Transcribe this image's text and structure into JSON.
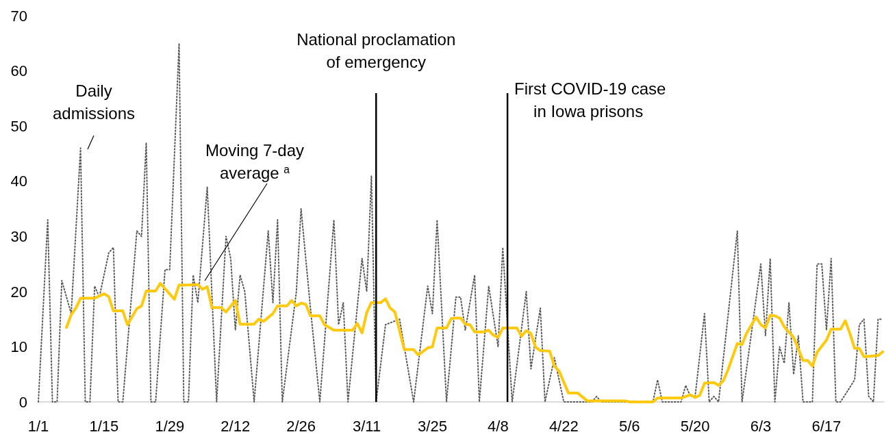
{
  "chart_data": {
    "type": "line",
    "xlim": [
      "--01-01",
      "--06-30"
    ],
    "xticks": [
      {
        "value": "--01-01",
        "label": "1/1"
      },
      {
        "value": "--01-15",
        "label": "1/15"
      },
      {
        "value": "--01-29",
        "label": "1/29"
      },
      {
        "value": "--02-12",
        "label": "2/12"
      },
      {
        "value": "--02-26",
        "label": "2/26"
      },
      {
        "value": "--03-11",
        "label": "3/11"
      },
      {
        "value": "--03-25",
        "label": "3/25"
      },
      {
        "value": "--04-08",
        "label": "4/8"
      },
      {
        "value": "--04-22",
        "label": "4/22"
      },
      {
        "value": "--05-06",
        "label": "5/6"
      },
      {
        "value": "--05-20",
        "label": "5/20"
      },
      {
        "value": "--06-03",
        "label": "6/3"
      },
      {
        "value": "--06-17",
        "label": "6/17"
      }
    ],
    "ylim": [
      0,
      70
    ],
    "yticks": [
      0,
      10,
      20,
      30,
      40,
      50,
      60,
      70
    ],
    "grid": false,
    "legend": false,
    "marker": "none",
    "ref_lines": [
      {
        "axis": "x",
        "value": "--03-13",
        "label": "National proclamation of emergency",
        "color": "#000000"
      },
      {
        "axis": "x",
        "value": "--04-10",
        "label": "First COVID-19 case in Iowa prisons",
        "color": "#000000"
      }
    ],
    "series": [
      {
        "name": "Daily admissions",
        "color": "#595959",
        "line_style": "dotted",
        "x": [
          "--01-01",
          "--01-03",
          "--01-04",
          "--01-05",
          "--01-06",
          "--01-08",
          "--01-10",
          "--01-11",
          "--01-12",
          "--01-13",
          "--01-14",
          "--01-16",
          "--01-17",
          "--01-18",
          "--01-19",
          "--01-22",
          "--01-23",
          "--01-24",
          "--01-25",
          "--01-26",
          "--01-28",
          "--01-29",
          "--01-31",
          "--02-01",
          "--02-02",
          "--02-03",
          "--02-04",
          "--02-06",
          "--02-08",
          "--02-10",
          "--02-11",
          "--02-12",
          "--02-13",
          "--02-14",
          "--02-16",
          "--02-19",
          "--02-20",
          "--02-21",
          "--02-22",
          "--02-25",
          "--02-26",
          "--02-28",
          "--03-01",
          "--03-04",
          "--03-05",
          "--03-06",
          "--03-07",
          "--03-10",
          "--03-11",
          "--03-12",
          "--03-13",
          "--03-15",
          "--03-18",
          "--03-21",
          "--03-24",
          "--03-25",
          "--03-26",
          "--03-28",
          "--03-30",
          "--03-31",
          "--04-01",
          "--04-03",
          "--04-04",
          "--04-06",
          "--04-08",
          "--04-09",
          "--04-11",
          "--04-14",
          "--04-15",
          "--04-17",
          "--04-18",
          "--04-20",
          "--04-22",
          "--04-28",
          "--04-29",
          "--04-30",
          "--05-11",
          "--05-12",
          "--05-13",
          "--05-17",
          "--05-18",
          "--05-19",
          "--05-20",
          "--05-22",
          "--05-23",
          "--05-24",
          "--05-25",
          "--05-29",
          "--05-30",
          "--06-03",
          "--06-04",
          "--06-05",
          "--06-06",
          "--06-07",
          "--06-08",
          "--06-09",
          "--06-10",
          "--06-11",
          "--06-12",
          "--06-14",
          "--06-15",
          "--06-16",
          "--06-17",
          "--06-18",
          "--06-19",
          "--06-20",
          "--06-23",
          "--06-24",
          "--06-25",
          "--06-26",
          "--06-27",
          "--06-28",
          "--06-29"
        ],
        "values": [
          0,
          33,
          0,
          0,
          22,
          16,
          46,
          0,
          0,
          21,
          19,
          27,
          28,
          0,
          0,
          31,
          30,
          47,
          0,
          0,
          24,
          24,
          65,
          0,
          0,
          23,
          18,
          39,
          0,
          30,
          26,
          13,
          23,
          20,
          0,
          31,
          18,
          33,
          0,
          20,
          35,
          17,
          0,
          33,
          14,
          18,
          0,
          26,
          20,
          41,
          0,
          14,
          15,
          0,
          21,
          16,
          33,
          0,
          19,
          19,
          13,
          23,
          0,
          21,
          10,
          28,
          0,
          20,
          6,
          17,
          0,
          8,
          0,
          0,
          1,
          0,
          0,
          4,
          0,
          0,
          3,
          1,
          1,
          16,
          0,
          1,
          0,
          31,
          0,
          25,
          12,
          26,
          0,
          10,
          7,
          18,
          5,
          12,
          0,
          0,
          25,
          25,
          13,
          26,
          0,
          0,
          4,
          14,
          15,
          1,
          0,
          15,
          15
        ]
      },
      {
        "name": "Moving 7-day average $^{a}$",
        "color": "#ffc90e",
        "line_style": "solid",
        "x": [
          "--01-07",
          "--01-08",
          "--01-09",
          "--01-10",
          "--01-13",
          "--01-15",
          "--01-16",
          "--01-17",
          "--01-19",
          "--01-20",
          "--01-22",
          "--01-23",
          "--01-24",
          "--01-26",
          "--01-27",
          "--01-30",
          "--01-31",
          "--02-02",
          "--02-04",
          "--02-05",
          "--02-06",
          "--02-07",
          "--02-09",
          "--02-10",
          "--02-12",
          "--02-13",
          "--02-16",
          "--02-17",
          "--02-18",
          "--02-20",
          "--02-21",
          "--02-23",
          "--02-24",
          "--02-25",
          "--02-26",
          "--02-27",
          "--02-28",
          "--03-01",
          "--03-02",
          "--03-04",
          "--03-08",
          "--03-09",
          "--03-10",
          "--03-11",
          "--03-12",
          "--03-14",
          "--03-15",
          "--03-16",
          "--03-17",
          "--03-19",
          "--03-21",
          "--03-22",
          "--03-24",
          "--03-25",
          "--03-26",
          "--03-28",
          "--03-29",
          "--03-30",
          "--03-31",
          "--04-01",
          "--04-02",
          "--04-03",
          "--04-05",
          "--04-06",
          "--04-07",
          "--04-08",
          "--04-09",
          "--04-12",
          "--04-13",
          "--04-14",
          "--04-15",
          "--04-16",
          "--04-17",
          "--04-19",
          "--04-20",
          "--04-21",
          "--04-23",
          "--04-25",
          "--04-27",
          "--05-05",
          "--05-06",
          "--05-11",
          "--05-12",
          "--05-17",
          "--05-19",
          "--05-20",
          "--05-21",
          "--05-22",
          "--05-24",
          "--05-25",
          "--05-26",
          "--05-27",
          "--05-29",
          "--05-30",
          "--05-31",
          "--06-02",
          "--06-03",
          "--06-04",
          "--06-05",
          "--06-06",
          "--06-07",
          "--06-08",
          "--06-10",
          "--06-12",
          "--06-13",
          "--06-14",
          "--06-15",
          "--06-17",
          "--06-18",
          "--06-20",
          "--06-21",
          "--06-22",
          "--06-23",
          "--06-24",
          "--06-25",
          "--06-28",
          "--06-29"
        ],
        "values": [
          13.5,
          15.8,
          17,
          18.8,
          18.8,
          19.6,
          19.1,
          16.5,
          16.5,
          14,
          16.9,
          17.4,
          20.1,
          20.1,
          21.5,
          18.6,
          21.2,
          21.2,
          21.3,
          20.4,
          20.9,
          17.1,
          17.1,
          16.3,
          18.4,
          14.1,
          14.1,
          15,
          14.6,
          16,
          17.4,
          17.4,
          18.4,
          17.4,
          17.9,
          17.7,
          15.6,
          15.6,
          14,
          13,
          13,
          14.2,
          12.5,
          16.2,
          18,
          18,
          18.7,
          17,
          16.3,
          9.5,
          9.5,
          8.5,
          9.8,
          10,
          13.4,
          13.4,
          15.1,
          15.2,
          15.2,
          14.1,
          14,
          12.7,
          12.7,
          13,
          12.1,
          11.7,
          13.4,
          13.4,
          11.9,
          12.9,
          12.4,
          9.9,
          9.3,
          9.2,
          6.5,
          5.6,
          1.6,
          1.6,
          0.2,
          0.2,
          0,
          0,
          0.7,
          0.7,
          1.3,
          0.8,
          1.2,
          3.4,
          3.5,
          3,
          3.8,
          5.8,
          10.6,
          10.4,
          12.5,
          15.4,
          14,
          13.4,
          15.7,
          15.6,
          15.2,
          13.6,
          11.7,
          7.5,
          7.5,
          6.5,
          9,
          11.2,
          13.2,
          13.2,
          14.7,
          12.4,
          9.7,
          9.7,
          8.2,
          8.4,
          9.1
        ]
      }
    ]
  }
}
